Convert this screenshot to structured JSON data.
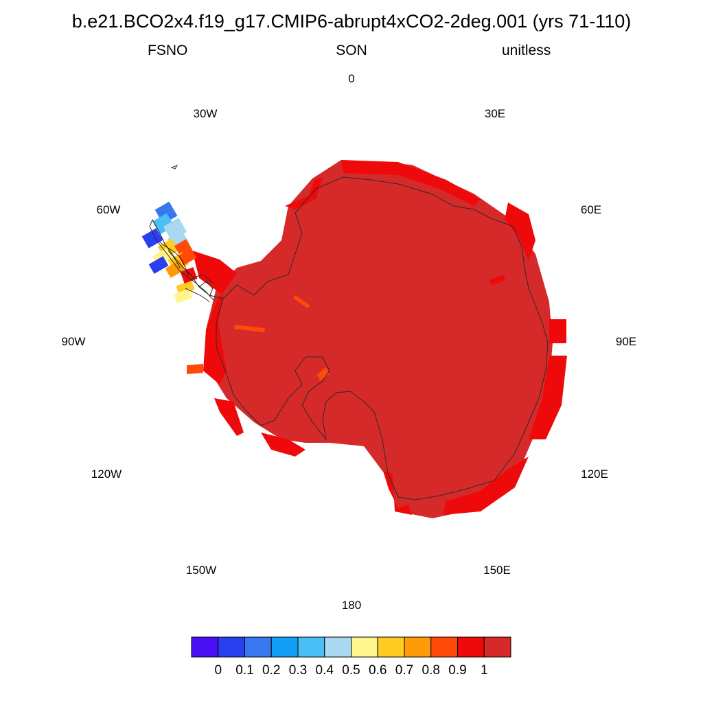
{
  "title": "b.e21.BCO2x4.f19_g17.CMIP6-abrupt4xCO2-2deg.001 (yrs 71-110)",
  "subtitle": {
    "left": "FSNO",
    "center": "SON",
    "right": "unitless"
  },
  "longitude_labels": {
    "n0": "0",
    "n30e": "30E",
    "n60e": "60E",
    "n90e": "90E",
    "n120e": "120E",
    "n150e": "150E",
    "n180": "180",
    "n150w": "150W",
    "n120w": "120W",
    "n90w": "90W",
    "n60w": "60W",
    "n30w": "30W"
  },
  "colorbar": {
    "colors": [
      "#4a10f5",
      "#2a3ff0",
      "#3778ee",
      "#139ff5",
      "#49bff5",
      "#a8d9f0",
      "#fff58c",
      "#ffcc22",
      "#ff9a08",
      "#ff4a08",
      "#ee0a0a",
      "#d62a2a"
    ],
    "labels": [
      "0",
      "0.1",
      "0.2",
      "0.3",
      "0.4",
      "0.5",
      "0.6",
      "0.7",
      "0.8",
      "0.9",
      "1"
    ]
  },
  "map_colors": {
    "interior": "#d62a2a",
    "edge": "#ee0a0a",
    "coast": "#2a2a2a"
  }
}
